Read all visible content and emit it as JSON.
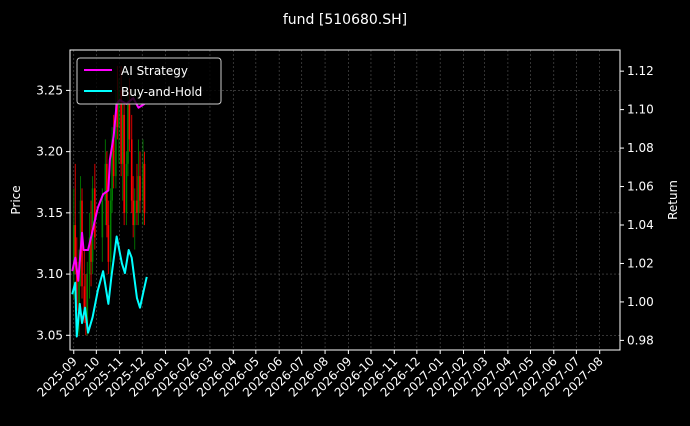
{
  "chart_data": {
    "type": "line",
    "title": "fund [510680.SH]",
    "ylabel_left": "Price",
    "ylabel_right": "Return",
    "xlim": [
      "2025-08-27",
      "2027-08-28"
    ],
    "ylim_left": [
      3.038,
      3.283
    ],
    "ylim_right": [
      0.975,
      1.131
    ],
    "grid": true,
    "legend_position": "top-left",
    "x_ticks": [
      "2025-09",
      "2025-10",
      "2025-11",
      "2025-12",
      "2026-01",
      "2026-02",
      "2026-03",
      "2026-04",
      "2026-05",
      "2026-06",
      "2026-07",
      "2026-08",
      "2026-09",
      "2026-10",
      "2026-11",
      "2026-12",
      "2027-01",
      "2027-02",
      "2027-03",
      "2027-04",
      "2027-05",
      "2027-06",
      "2027-07",
      "2027-08"
    ],
    "y_ticks_left": [
      "3.05",
      "3.10",
      "3.15",
      "3.20",
      "3.25"
    ],
    "y_ticks_right": [
      "0.98",
      "1.00",
      "1.02",
      "1.04",
      "1.06",
      "1.08",
      "1.10",
      "1.12"
    ],
    "colors": {
      "up": "#008000",
      "down": "#ff0000",
      "ai": "#ff00ff",
      "bh": "#00ffff",
      "background": "#000000"
    },
    "candles": [
      {
        "date": "2025-09-01",
        "o": 3.1,
        "h": 3.17,
        "l": 3.08,
        "c": 3.14
      },
      {
        "date": "2025-09-03",
        "o": 3.14,
        "h": 3.19,
        "l": 3.1,
        "c": 3.11
      },
      {
        "date": "2025-09-05",
        "o": 3.11,
        "h": 3.13,
        "l": 3.06,
        "c": 3.07
      },
      {
        "date": "2025-09-08",
        "o": 3.07,
        "h": 3.12,
        "l": 3.05,
        "c": 3.11
      },
      {
        "date": "2025-09-10",
        "o": 3.11,
        "h": 3.18,
        "l": 3.09,
        "c": 3.16
      },
      {
        "date": "2025-09-12",
        "o": 3.16,
        "h": 3.17,
        "l": 3.08,
        "c": 3.09
      },
      {
        "date": "2025-09-15",
        "o": 3.09,
        "h": 3.12,
        "l": 3.06,
        "c": 3.07
      },
      {
        "date": "2025-09-17",
        "o": 3.07,
        "h": 3.1,
        "l": 3.05,
        "c": 3.06
      },
      {
        "date": "2025-09-19",
        "o": 3.06,
        "h": 3.11,
        "l": 3.05,
        "c": 3.1
      },
      {
        "date": "2025-09-22",
        "o": 3.1,
        "h": 3.15,
        "l": 3.08,
        "c": 3.13
      },
      {
        "date": "2025-09-24",
        "o": 3.13,
        "h": 3.16,
        "l": 3.09,
        "c": 3.11
      },
      {
        "date": "2025-09-26",
        "o": 3.11,
        "h": 3.18,
        "l": 3.1,
        "c": 3.17
      },
      {
        "date": "2025-09-29",
        "o": 3.17,
        "h": 3.19,
        "l": 3.12,
        "c": 3.13
      },
      {
        "date": "2025-10-09",
        "o": 3.13,
        "h": 3.17,
        "l": 3.11,
        "c": 3.16
      },
      {
        "date": "2025-10-13",
        "o": 3.16,
        "h": 3.21,
        "l": 3.14,
        "c": 3.19
      },
      {
        "date": "2025-10-15",
        "o": 3.19,
        "h": 3.2,
        "l": 3.13,
        "c": 3.14
      },
      {
        "date": "2025-10-17",
        "o": 3.14,
        "h": 3.16,
        "l": 3.1,
        "c": 3.11
      },
      {
        "date": "2025-10-20",
        "o": 3.11,
        "h": 3.17,
        "l": 3.1,
        "c": 3.16
      },
      {
        "date": "2025-10-22",
        "o": 3.16,
        "h": 3.22,
        "l": 3.15,
        "c": 3.21
      },
      {
        "date": "2025-10-24",
        "o": 3.21,
        "h": 3.23,
        "l": 3.17,
        "c": 3.18
      },
      {
        "date": "2025-10-27",
        "o": 3.18,
        "h": 3.25,
        "l": 3.17,
        "c": 3.24
      },
      {
        "date": "2025-10-29",
        "o": 3.24,
        "h": 3.27,
        "l": 3.21,
        "c": 3.22
      },
      {
        "date": "2025-10-31",
        "o": 3.22,
        "h": 3.26,
        "l": 3.19,
        "c": 3.25
      },
      {
        "date": "2025-11-03",
        "o": 3.25,
        "h": 3.27,
        "l": 3.18,
        "c": 3.19
      },
      {
        "date": "2025-11-05",
        "o": 3.19,
        "h": 3.24,
        "l": 3.16,
        "c": 3.23
      },
      {
        "date": "2025-11-07",
        "o": 3.23,
        "h": 3.24,
        "l": 3.14,
        "c": 3.15
      },
      {
        "date": "2025-11-10",
        "o": 3.15,
        "h": 3.2,
        "l": 3.14,
        "c": 3.19
      },
      {
        "date": "2025-11-12",
        "o": 3.19,
        "h": 3.25,
        "l": 3.18,
        "c": 3.24
      },
      {
        "date": "2025-11-14",
        "o": 3.24,
        "h": 3.26,
        "l": 3.2,
        "c": 3.21
      },
      {
        "date": "2025-11-17",
        "o": 3.21,
        "h": 3.23,
        "l": 3.15,
        "c": 3.16
      },
      {
        "date": "2025-11-19",
        "o": 3.16,
        "h": 3.18,
        "l": 3.13,
        "c": 3.14
      },
      {
        "date": "2025-11-21",
        "o": 3.14,
        "h": 3.17,
        "l": 3.12,
        "c": 3.16
      },
      {
        "date": "2025-11-24",
        "o": 3.16,
        "h": 3.19,
        "l": 3.14,
        "c": 3.15
      },
      {
        "date": "2025-11-26",
        "o": 3.15,
        "h": 3.21,
        "l": 3.14,
        "c": 3.18
      },
      {
        "date": "2025-11-28",
        "o": 3.18,
        "h": 3.2,
        "l": 3.15,
        "c": 3.16
      },
      {
        "date": "2025-12-02",
        "o": 3.16,
        "h": 3.21,
        "l": 3.14,
        "c": 3.19
      },
      {
        "date": "2025-12-04",
        "o": 3.19,
        "h": 3.2,
        "l": 3.14,
        "c": 3.15
      }
    ],
    "series": [
      {
        "name": "AI Strategy",
        "dates": [
          "2025-08-30",
          "2025-09-03",
          "2025-09-07",
          "2025-09-12",
          "2025-09-14",
          "2025-09-20",
          "2025-09-26",
          "2025-10-03",
          "2025-10-10",
          "2025-10-17",
          "2025-10-19",
          "2025-10-24",
          "2025-10-28",
          "2025-11-01",
          "2025-11-10",
          "2025-11-19",
          "2025-11-26",
          "2025-12-04"
        ],
        "values": [
          1.016,
          1.023,
          1.011,
          1.036,
          1.027,
          1.027,
          1.037,
          1.049,
          1.056,
          1.058,
          1.074,
          1.086,
          1.103,
          1.105,
          1.103,
          1.106,
          1.101,
          1.103
        ]
      },
      {
        "name": "Buy-and-Hold",
        "dates": [
          "2025-08-30",
          "2025-09-03",
          "2025-09-05",
          "2025-09-09",
          "2025-09-12",
          "2025-09-16",
          "2025-09-20",
          "2025-09-26",
          "2025-10-03",
          "2025-10-10",
          "2025-10-17",
          "2025-10-21",
          "2025-10-28",
          "2025-11-04",
          "2025-11-08",
          "2025-11-13",
          "2025-11-17",
          "2025-11-24",
          "2025-11-28",
          "2025-12-03",
          "2025-12-07"
        ],
        "values": [
          1.004,
          1.01,
          0.982,
          0.999,
          0.989,
          0.997,
          0.984,
          0.992,
          1.006,
          1.016,
          0.999,
          1.013,
          1.034,
          1.02,
          1.015,
          1.027,
          1.023,
          1.002,
          0.997,
          1.006,
          1.013
        ]
      }
    ]
  }
}
